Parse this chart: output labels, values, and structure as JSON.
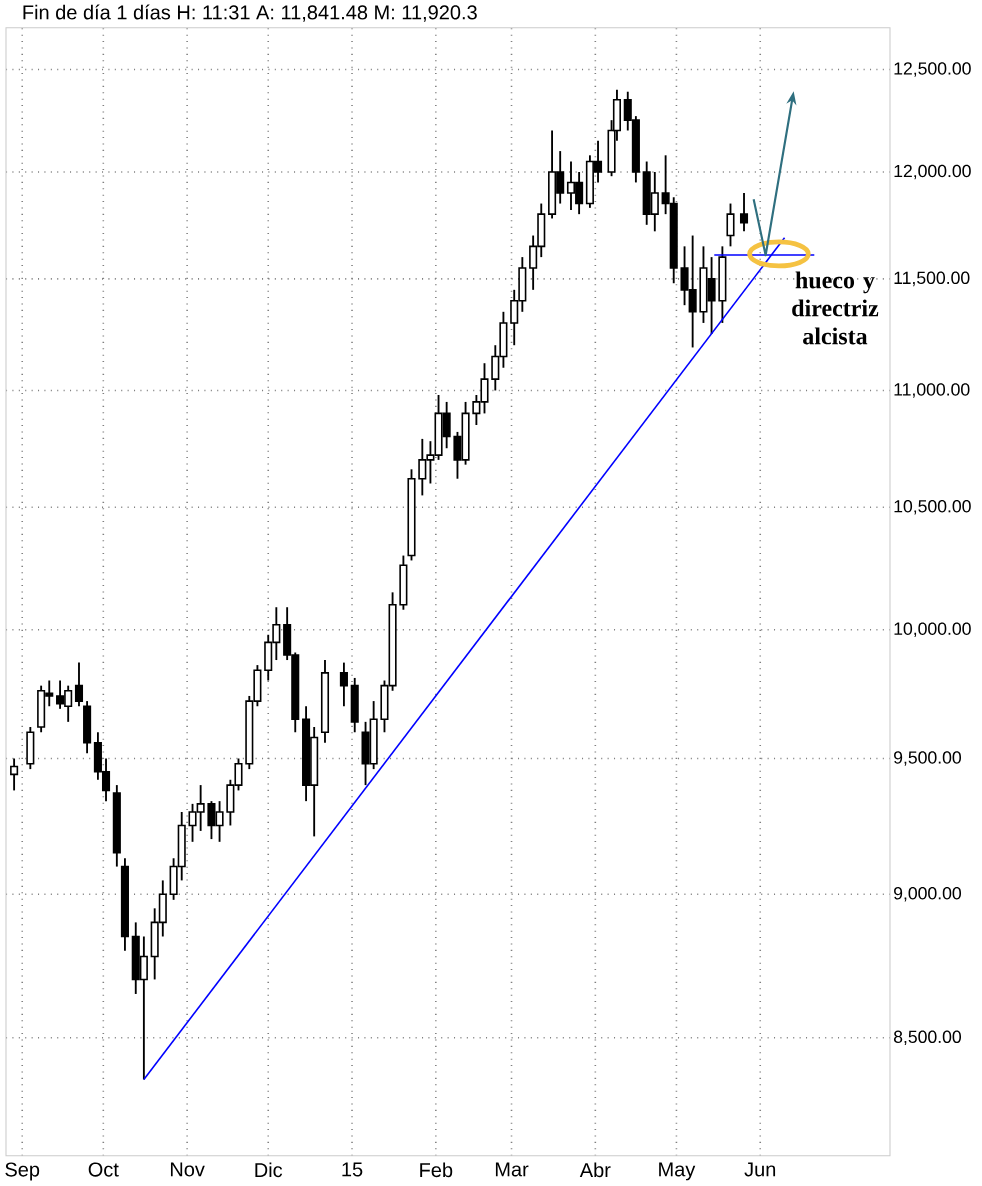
{
  "chart_data": {
    "type": "candlestick",
    "title": "Fin de día 1 días  H: 11:31  A: 11,841.48  M: 11,920.3",
    "x": [
      "2014-08-29",
      "2014-09-04",
      "2014-09-08",
      "2014-09-11",
      "2014-09-15",
      "2014-09-18",
      "2014-09-22",
      "2014-09-25",
      "2014-09-29",
      "2014-10-02",
      "2014-10-06",
      "2014-10-09",
      "2014-10-13",
      "2014-10-16",
      "2014-10-20",
      "2014-10-23",
      "2014-10-27",
      "2014-10-30",
      "2014-11-03",
      "2014-11-06",
      "2014-11-10",
      "2014-11-13",
      "2014-11-17",
      "2014-11-20",
      "2014-11-24",
      "2014-11-27",
      "2014-12-01",
      "2014-12-04",
      "2014-12-08",
      "2014-12-11",
      "2014-12-15",
      "2014-12-18",
      "2014-12-22",
      "2014-12-29",
      "2015-01-02",
      "2015-01-06",
      "2015-01-09",
      "2015-01-13",
      "2015-01-16",
      "2015-01-20",
      "2015-01-23",
      "2015-01-27",
      "2015-01-30",
      "2015-02-02",
      "2015-02-05",
      "2015-02-09",
      "2015-02-12",
      "2015-02-16",
      "2015-02-19",
      "2015-02-23",
      "2015-02-26",
      "2015-03-02",
      "2015-03-05",
      "2015-03-09",
      "2015-03-12",
      "2015-03-16",
      "2015-03-19",
      "2015-03-23",
      "2015-03-26",
      "2015-03-30",
      "2015-04-02",
      "2015-04-07",
      "2015-04-09",
      "2015-04-13",
      "2015-04-16",
      "2015-04-20",
      "2015-04-23",
      "2015-04-27",
      "2015-04-30",
      "2015-05-04",
      "2015-05-07",
      "2015-05-11",
      "2015-05-14",
      "2015-05-18",
      "2015-05-21",
      "2015-05-26"
    ],
    "ohlc": [
      [
        9440,
        9500,
        9380,
        9470
      ],
      [
        9480,
        9620,
        9460,
        9600
      ],
      [
        9620,
        9780,
        9600,
        9760
      ],
      [
        9750,
        9800,
        9700,
        9740
      ],
      [
        9740,
        9800,
        9690,
        9710
      ],
      [
        9700,
        9780,
        9640,
        9760
      ],
      [
        9780,
        9870,
        9700,
        9720
      ],
      [
        9700,
        9720,
        9520,
        9560
      ],
      [
        9560,
        9600,
        9420,
        9450
      ],
      [
        9450,
        9500,
        9340,
        9380
      ],
      [
        9370,
        9400,
        9100,
        9150
      ],
      [
        9100,
        9130,
        8800,
        8850
      ],
      [
        8850,
        8900,
        8650,
        8700
      ],
      [
        8700,
        8850,
        8360,
        8780
      ],
      [
        8780,
        8950,
        8700,
        8900
      ],
      [
        8900,
        9050,
        8850,
        9000
      ],
      [
        9000,
        9130,
        8980,
        9100
      ],
      [
        9100,
        9300,
        9050,
        9250
      ],
      [
        9250,
        9330,
        9190,
        9300
      ],
      [
        9300,
        9400,
        9230,
        9330
      ],
      [
        9330,
        9340,
        9200,
        9250
      ],
      [
        9250,
        9340,
        9190,
        9300
      ],
      [
        9300,
        9420,
        9250,
        9400
      ],
      [
        9400,
        9500,
        9380,
        9480
      ],
      [
        9480,
        9740,
        9460,
        9720
      ],
      [
        9720,
        9860,
        9700,
        9840
      ],
      [
        9840,
        9980,
        9800,
        9950
      ],
      [
        9950,
        10090,
        9880,
        10020
      ],
      [
        10020,
        10090,
        9880,
        9900
      ],
      [
        9900,
        9910,
        9600,
        9650
      ],
      [
        9650,
        9700,
        9340,
        9400
      ],
      [
        9400,
        9620,
        9210,
        9580
      ],
      [
        9600,
        9880,
        9560,
        9830
      ],
      [
        9830,
        9870,
        9700,
        9780
      ],
      [
        9780,
        9810,
        9600,
        9640
      ],
      [
        9600,
        9640,
        9400,
        9480
      ],
      [
        9480,
        9720,
        9460,
        9650
      ],
      [
        9650,
        9800,
        9600,
        9780
      ],
      [
        9780,
        10150,
        9760,
        10100
      ],
      [
        10100,
        10300,
        10080,
        10260
      ],
      [
        10300,
        10660,
        10280,
        10620
      ],
      [
        10620,
        10790,
        10550,
        10700
      ],
      [
        10700,
        10780,
        10600,
        10720
      ],
      [
        10720,
        10980,
        10700,
        10900
      ],
      [
        10900,
        10950,
        10750,
        10800
      ],
      [
        10800,
        10820,
        10620,
        10700
      ],
      [
        10700,
        10950,
        10680,
        10900
      ],
      [
        10900,
        10980,
        10850,
        10950
      ],
      [
        10950,
        11120,
        10900,
        11050
      ],
      [
        11050,
        11200,
        11000,
        11150
      ],
      [
        11150,
        11350,
        11100,
        11300
      ],
      [
        11300,
        11450,
        11200,
        11400
      ],
      [
        11400,
        11600,
        11350,
        11550
      ],
      [
        11550,
        11700,
        11450,
        11650
      ],
      [
        11650,
        11850,
        11600,
        11800
      ],
      [
        11800,
        12200,
        11780,
        12000
      ],
      [
        12000,
        12100,
        11850,
        11900
      ],
      [
        11900,
        12050,
        11820,
        11950
      ],
      [
        11950,
        12000,
        11800,
        11850
      ],
      [
        11850,
        12080,
        11830,
        12050
      ],
      [
        12050,
        12150,
        11950,
        12000
      ],
      [
        12000,
        12250,
        11980,
        12200
      ],
      [
        12200,
        12400,
        12150,
        12350
      ],
      [
        12350,
        12390,
        12200,
        12250
      ],
      [
        12250,
        12270,
        11950,
        12000
      ],
      [
        12000,
        12050,
        11750,
        11800
      ],
      [
        11800,
        12000,
        11720,
        11900
      ],
      [
        11900,
        12080,
        11800,
        11850
      ],
      [
        11850,
        11880,
        11480,
        11550
      ],
      [
        11550,
        11650,
        11380,
        11450
      ],
      [
        11450,
        11700,
        11190,
        11350
      ],
      [
        11350,
        11650,
        11300,
        11550
      ],
      [
        11500,
        11600,
        11250,
        11400
      ],
      [
        11400,
        11650,
        11300,
        11600
      ],
      [
        11700,
        11850,
        11650,
        11800
      ],
      [
        11800,
        11900,
        11720,
        11760
      ]
    ],
    "series": [
      {
        "type": "line",
        "color": "#0000ff",
        "x": [
          "2014-10-16",
          "2015-06-10"
        ],
        "values": [
          8360,
          11690
        ]
      },
      {
        "type": "line",
        "color": "#0000ff",
        "x": [
          "2015-05-15",
          "2015-06-21"
        ],
        "values": [
          11610,
          11610
        ]
      }
    ],
    "xlim": [
      "2014-08-26",
      "2015-07-19"
    ],
    "ylim": [
      8110,
      12710
    ],
    "log": true,
    "xticks": [
      {
        "value": "2014-09-01",
        "label": "Sep"
      },
      {
        "value": "2014-10-01",
        "label": "Oct"
      },
      {
        "value": "2014-11-01",
        "label": "Nov"
      },
      {
        "value": "2014-12-01",
        "label": "Dic"
      },
      {
        "value": "2015-01-01",
        "label": "15"
      },
      {
        "value": "2015-02-01",
        "label": "Feb"
      },
      {
        "value": "2015-03-01",
        "label": "Mar"
      },
      {
        "value": "2015-04-01",
        "label": "Abr"
      },
      {
        "value": "2015-05-01",
        "label": "May"
      },
      {
        "value": "2015-06-01",
        "label": "Jun"
      }
    ],
    "yticks": [
      {
        "value": 8500,
        "label": "8,500.00"
      },
      {
        "value": 9000,
        "label": "9,000.00"
      },
      {
        "value": 9500,
        "label": "9,500.00"
      },
      {
        "value": 10000,
        "label": "10,000.00"
      },
      {
        "value": 10500,
        "label": "10,500.00"
      },
      {
        "value": 11000,
        "label": "11,000.00"
      },
      {
        "value": 11500,
        "label": "11,500.00"
      },
      {
        "value": 12000,
        "label": "12,000.00"
      },
      {
        "value": 12500,
        "label": "12,500.00"
      }
    ],
    "grid": true,
    "annotations": [
      {
        "text": "hueco y directriz alcista",
        "x": "2015-06-03",
        "y": 11610
      }
    ]
  }
}
